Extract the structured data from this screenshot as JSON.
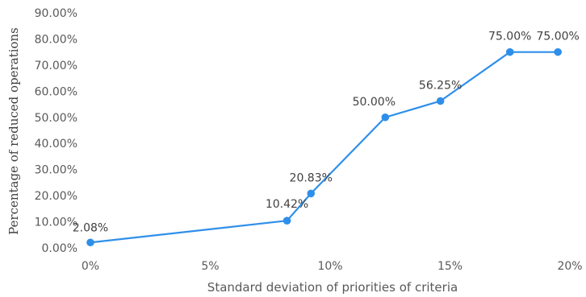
{
  "chart_data": {
    "type": "line",
    "title": "",
    "xlabel": "Standard deviation of priorities of criteria",
    "ylabel": "Percentage of reduced operations",
    "x_ticks": [
      "0%",
      "5%",
      "10%",
      "15%",
      "20%"
    ],
    "x_tick_values": [
      0,
      5,
      10,
      15,
      20
    ],
    "y_ticks": [
      "0.00%",
      "10.00%",
      "20.00%",
      "30.00%",
      "40.00%",
      "50.00%",
      "60.00%",
      "70.00%",
      "80.00%",
      "90.00%"
    ],
    "y_tick_values": [
      0,
      10,
      20,
      30,
      40,
      50,
      60,
      70,
      80,
      90
    ],
    "xlim": [
      0,
      20
    ],
    "ylim": [
      0,
      90
    ],
    "grid": false,
    "legend": "none",
    "series": [
      {
        "color": "#2E8FEA",
        "points": [
          {
            "x": 0.0,
            "y": 2.08,
            "label": "2.08%"
          },
          {
            "x": 8.2,
            "y": 10.42,
            "label": "10.42%"
          },
          {
            "x": 9.2,
            "y": 20.83,
            "label": "20.83%"
          },
          {
            "x": 12.3,
            "y": 50.0,
            "label": "50.00%"
          },
          {
            "x": 14.6,
            "y": 56.25,
            "label": "56.25%"
          },
          {
            "x": 17.5,
            "y": 75.0,
            "label": "75.00%"
          },
          {
            "x": 19.5,
            "y": 75.0,
            "label": "75.00%"
          }
        ]
      }
    ]
  }
}
